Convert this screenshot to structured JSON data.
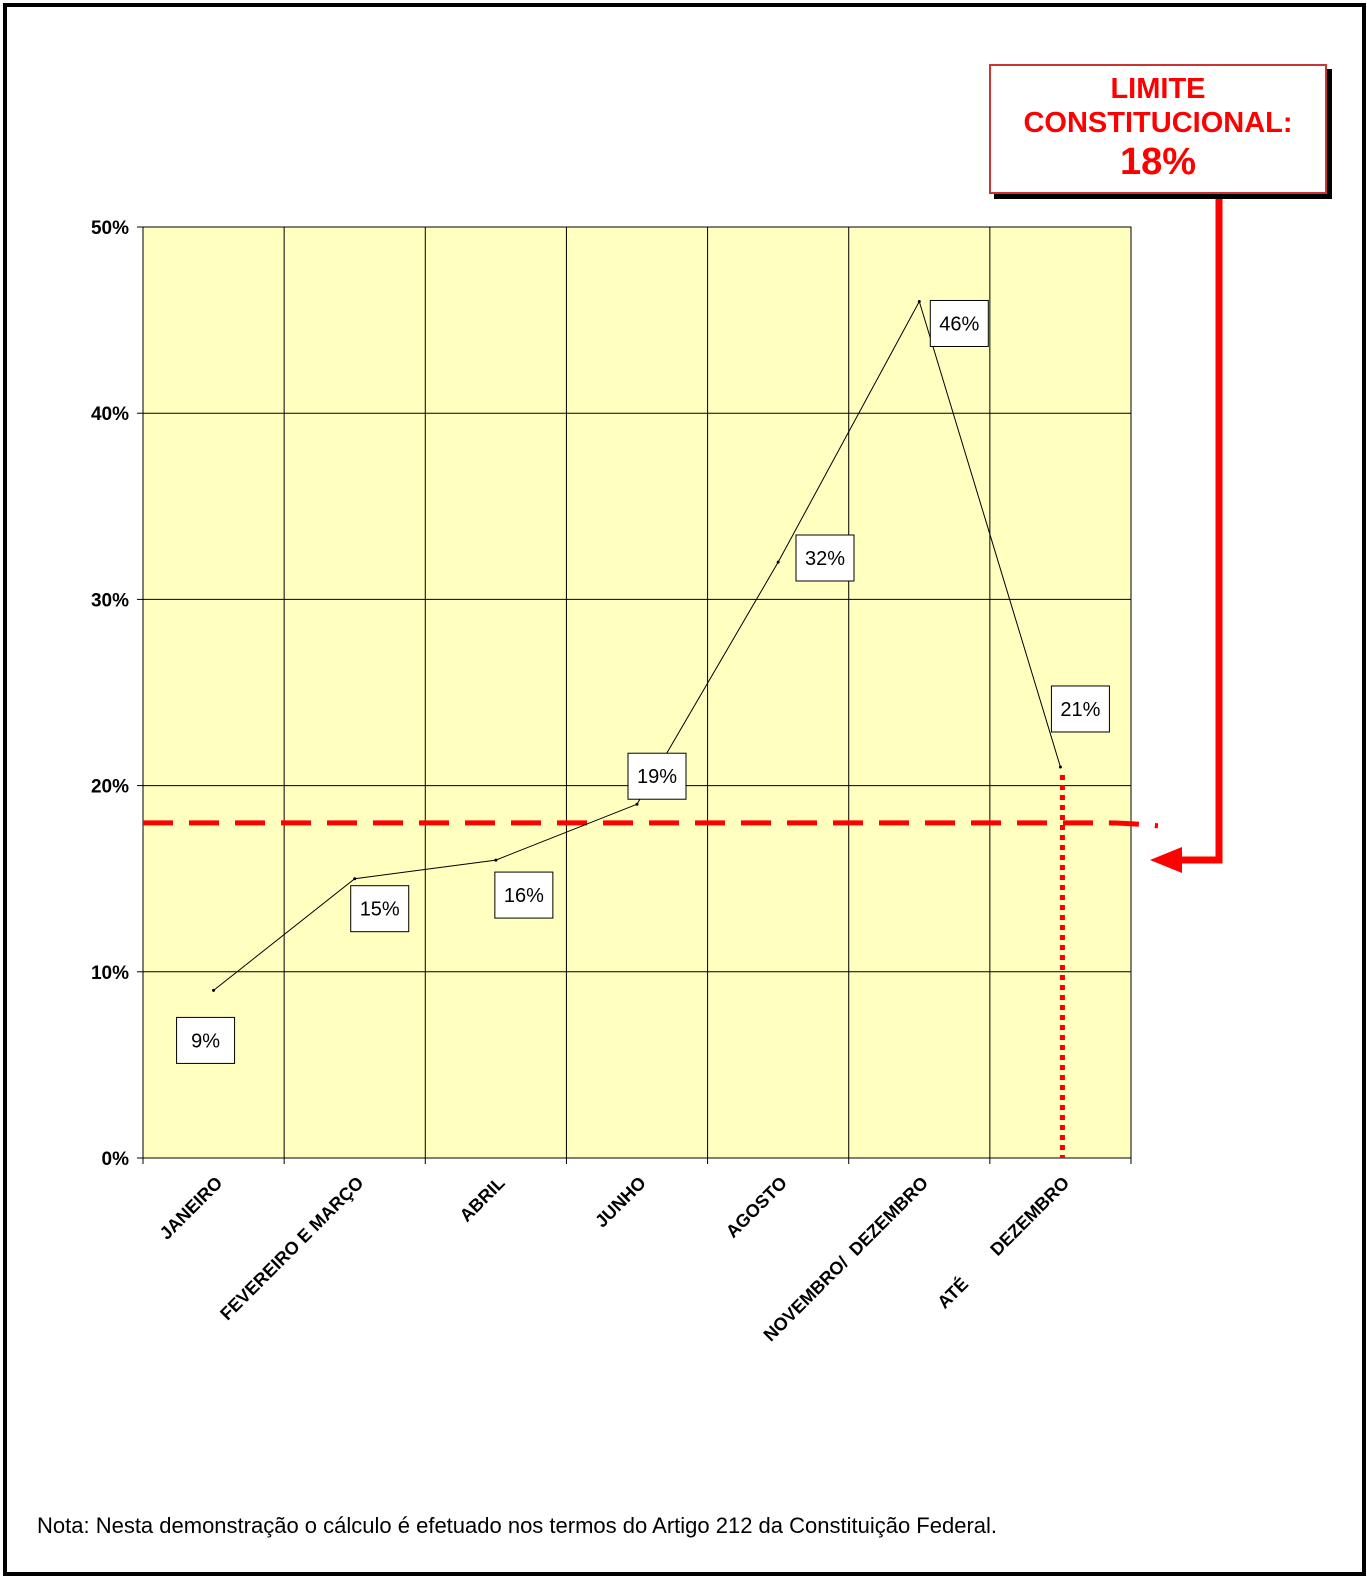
{
  "chart_data": {
    "type": "line",
    "categories": [
      "JANEIRO",
      "FEVEREIRO E MARÇO",
      "ABRIL",
      "JUNHO",
      "AGOSTO",
      "NOVEMBRO/  DEZEMBRO",
      "ATÉ        DEZEMBRO"
    ],
    "series": [
      {
        "values": [
          9,
          15,
          16,
          19,
          32,
          46,
          21
        ]
      }
    ],
    "data_labels": [
      "9%",
      "15%",
      "16%",
      "19%",
      "32%",
      "46%",
      "21%"
    ],
    "yticks": [
      0,
      10,
      20,
      30,
      40,
      50
    ],
    "ytick_labels": [
      "0%",
      "10%",
      "20%",
      "30%",
      "40%",
      "50%"
    ],
    "ylim": [
      0,
      50
    ],
    "grid": true,
    "reference_line": {
      "value": 18,
      "style": "dashed",
      "color": "#ff0000"
    },
    "plot_background": "#ffffc0",
    "line_color": "#000000"
  },
  "limit_box": {
    "line1": "LIMITE",
    "line2": "CONSTITUCIONAL:",
    "line3": "18%",
    "color": "#ff0000"
  },
  "note": "Nota: Nesta demonstração o cálculo é efetuado nos termos do Artigo 212 da Constituição Federal."
}
